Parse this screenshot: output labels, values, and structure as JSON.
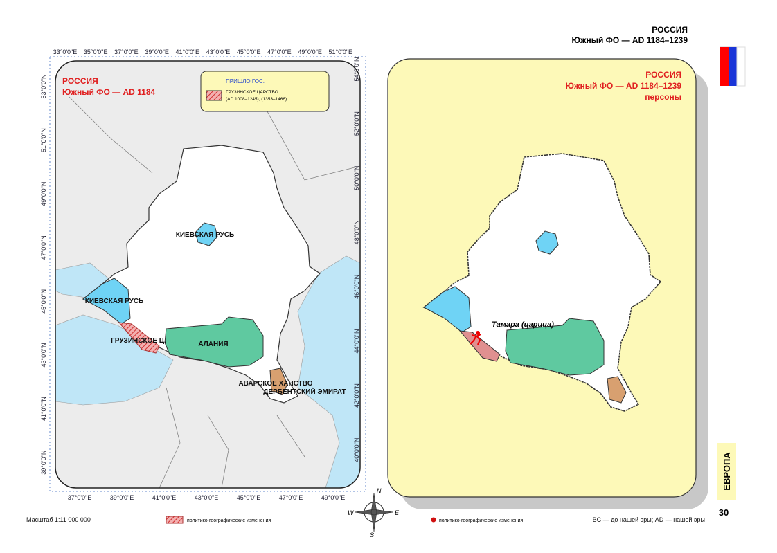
{
  "header": {
    "country": "РОССИЯ",
    "subtitle": "Южный ФО — AD 1184–1239"
  },
  "left_map": {
    "title": "РОССИЯ",
    "subtitle": "Южный ФО —  AD 1184",
    "legend": {
      "heading": "ПРИШЛО ГОС.",
      "item": "ГРУЗИНСКОЕ ЦАРСТВО",
      "item_dates": "(AD 1008–1245), (1353–1466)"
    },
    "labels": {
      "kiev_north": "КИЕВСКАЯ РУСЬ",
      "kiev_west": "КИЕВСКАЯ РУСЬ",
      "georgia": "ГРУЗИНСКОЕ Ц.",
      "alania": "АЛАНИЯ",
      "avar": "АВАРСКОЕ ХАНСТВО",
      "derbent": "ДЕРБЕНТСКИЙ ЭМИРАТ"
    },
    "top_ticks": [
      "33°0'0\"E",
      "35°0'0\"E",
      "37°0'0\"E",
      "39°0'0\"E",
      "41°0'0\"E",
      "43°0'0\"E",
      "45°0'0\"E",
      "47°0'0\"E",
      "49°0'0\"E",
      "51°0'0\"E"
    ],
    "bottom_ticks": [
      "37°0'0\"E",
      "39°0'0\"E",
      "41°0'0\"E",
      "43°0'0\"E",
      "45°0'0\"E",
      "47°0'0\"E",
      "49°0'0\"E"
    ],
    "left_ticks": [
      "53°0'0\"N",
      "51°0'0\"N",
      "49°0'0\"N",
      "47°0'0\"N",
      "45°0'0\"N",
      "43°0'0\"N",
      "41°0'0\"N",
      "39°0'0\"N"
    ],
    "right_ticks": [
      "54°0'0\"N",
      "52°0'0\"N",
      "50°0'0\"N",
      "48°0'0\"N",
      "46°0'0\"N",
      "44°0'0\"N",
      "42°0'0\"N",
      "40°0'0\"N"
    ]
  },
  "right_map": {
    "title": "РОССИЯ",
    "subtitle": "Южный ФО —  AD 1184–1239",
    "subtitle2": "персоны",
    "person": "Тамара (царица)"
  },
  "compass": {
    "n": "N",
    "s": "S",
    "w": "W",
    "e": "E"
  },
  "footer": {
    "scale": "Масштаб 1:11 000 000",
    "legend_changes": "политико-географические изменения",
    "legend_points": "политико-географические изменения",
    "era_note": "BC — до нашей эры; AD — нашей эры"
  },
  "side_tab": "ЕВРОПА",
  "page_number": "30"
}
